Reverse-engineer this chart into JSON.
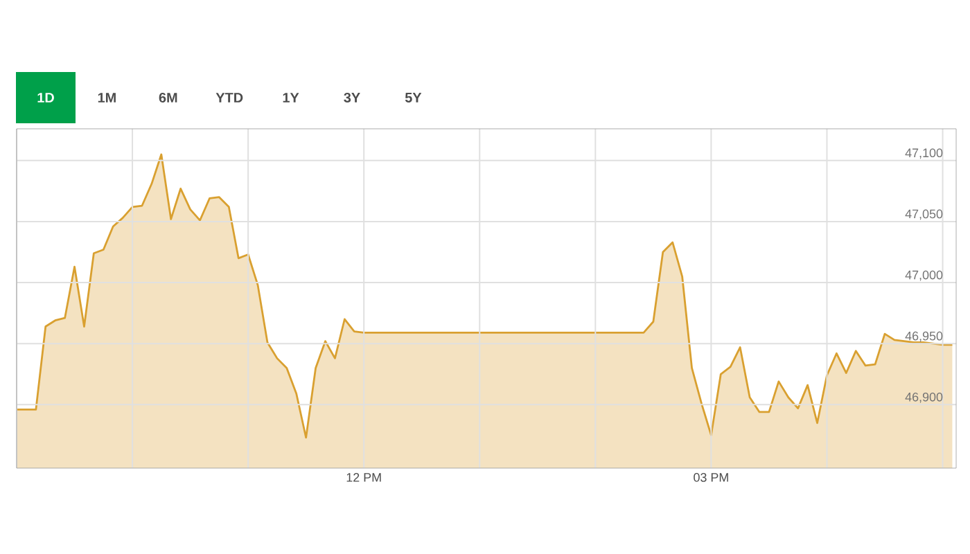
{
  "chart_data": {
    "type": "area",
    "annotations": [
      "1D",
      "1M",
      "6M",
      "YTD",
      "1Y",
      "3Y",
      "5Y"
    ],
    "categories": [
      null,
      null,
      null,
      null,
      null,
      null,
      null,
      null,
      null,
      null,
      null,
      null,
      null,
      null,
      null,
      null,
      null,
      null,
      null,
      null,
      null,
      null,
      null,
      null,
      null,
      null,
      null,
      null,
      null,
      null,
      null,
      null,
      null,
      null,
      null,
      null,
      "12 PM",
      null,
      null,
      null,
      null,
      null,
      null,
      null,
      null,
      null,
      null,
      null,
      null,
      null,
      null,
      null,
      null,
      null,
      null,
      null,
      null,
      null,
      null,
      null,
      null,
      null,
      null,
      null,
      null,
      null,
      null,
      null,
      null,
      null,
      null,
      null,
      "03 PM",
      null,
      null,
      null,
      null,
      null,
      null,
      null,
      null,
      null,
      null,
      null,
      null,
      null,
      null,
      null,
      null,
      null,
      null,
      null,
      null,
      null,
      null,
      null,
      null,
      null
    ],
    "ylim": [
      46848,
      47126
    ],
    "yticks": [
      {
        "value": 46900,
        "label": "46,900"
      },
      {
        "value": 46950,
        "label": "46,950"
      },
      {
        "value": 47000,
        "label": "47,000"
      },
      {
        "value": 47050,
        "label": "47,050"
      },
      {
        "value": 47100,
        "label": "47,100"
      }
    ],
    "grid": true,
    "series": [
      {
        "color": "#d9a030",
        "values": [
          46896,
          46896,
          46896,
          46964,
          46969,
          46971,
          47013,
          46964,
          47024,
          47027,
          47046,
          47053,
          47062,
          47063,
          47081,
          47105,
          47052,
          47077,
          47060,
          47051,
          47069,
          47070,
          47062,
          47020,
          47023,
          46998,
          46951,
          46938,
          46930,
          46909,
          46873,
          46930,
          46952,
          46938,
          46970,
          46960,
          46959,
          46959,
          46959,
          46959,
          46959,
          46959,
          46959,
          46959,
          46959,
          46959,
          46959,
          46959,
          46959,
          46959,
          46959,
          46959,
          46959,
          46959,
          46959,
          46959,
          46959,
          46959,
          46959,
          46959,
          46959,
          46959,
          46959,
          46959,
          46959,
          46959,
          46968,
          47025,
          47033,
          47005,
          46930,
          46901,
          46875,
          46925,
          46931,
          46947,
          46906,
          46894,
          46894,
          46919,
          46906,
          46897,
          46916,
          46885,
          46924,
          46942,
          46926,
          46944,
          46932,
          46933,
          46958,
          46953,
          46952,
          46951,
          46951,
          46950,
          46949,
          46949
        ]
      }
    ]
  }
}
